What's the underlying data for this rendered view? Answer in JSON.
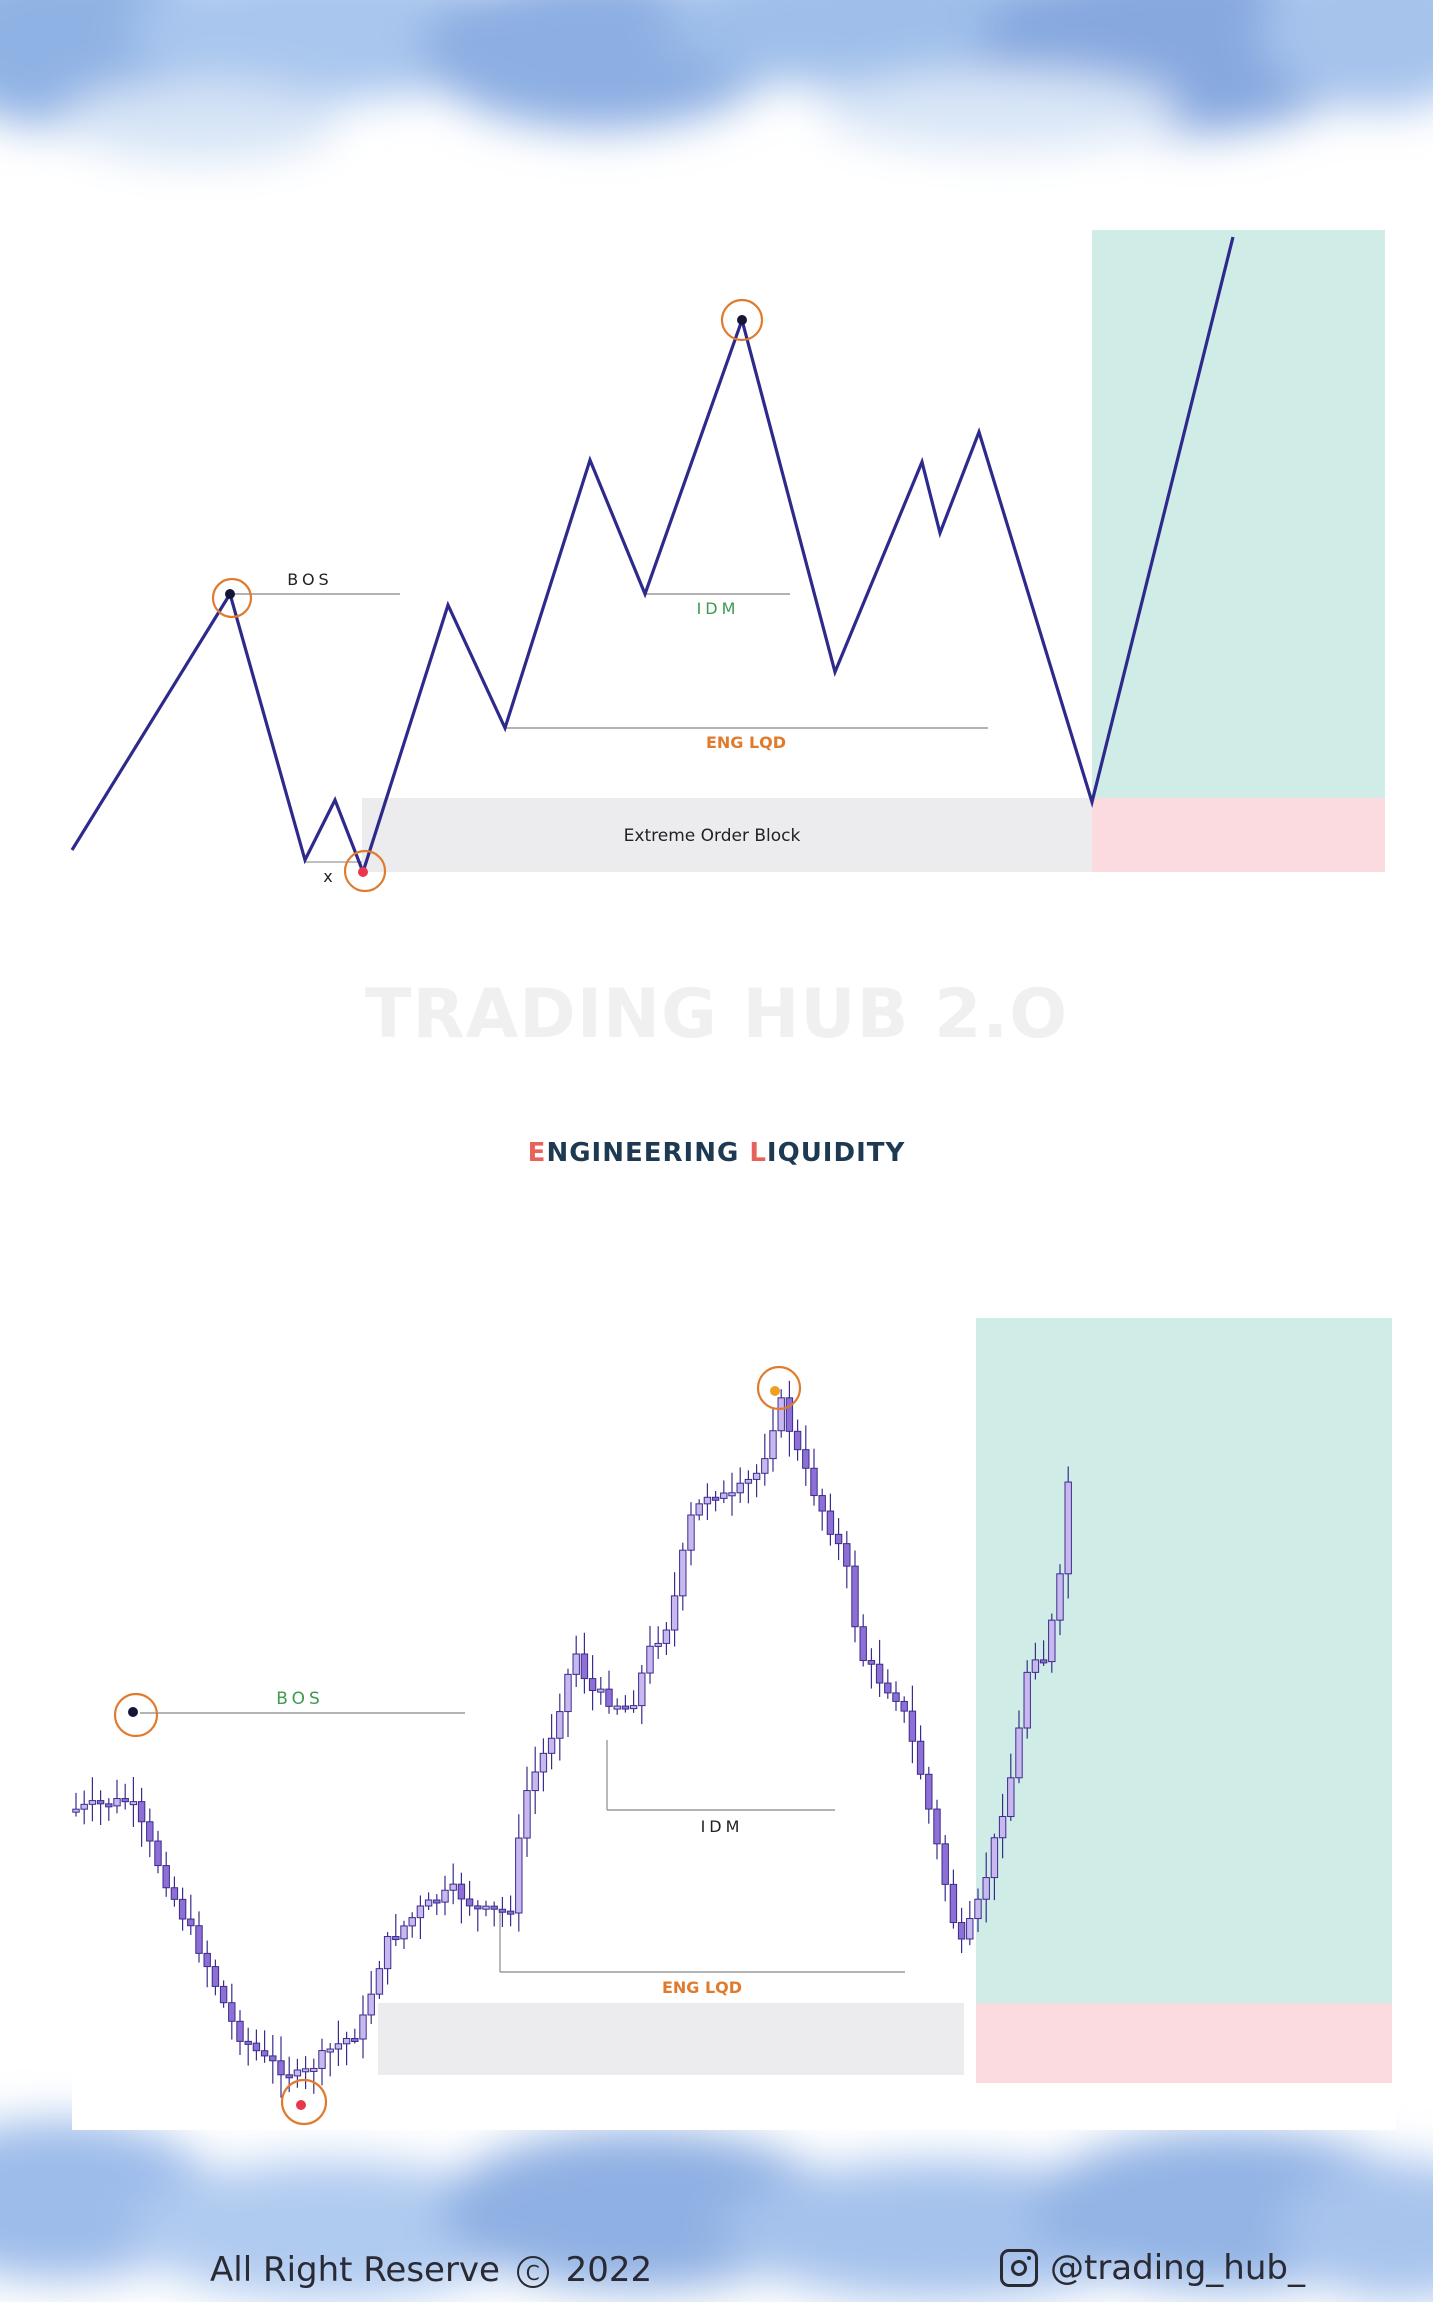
{
  "colors": {
    "sky": "#9ebfe8",
    "line": "#2d2a8c",
    "circle": "#e07b2e",
    "target_zone": "#cfece6",
    "stop_zone": "#fcdbe0",
    "order_block": "#ececee",
    "bos_green": "#3d9a50",
    "eng_orange": "#e07b2e",
    "candle_fill": "#c9b8f0",
    "candle_stroke": "#3a2c8c",
    "candle_bear": "#8e6fd6"
  },
  "top_diagram": {
    "labels": {
      "bos": "BOS",
      "idm": "IDM",
      "eng_lqd": "ENG LQD",
      "extreme_order_block": "Extreme Order Block",
      "x_mark": "x"
    }
  },
  "watermark": "TRADING HUB 2.O",
  "subtitle": {
    "first_initial": "E",
    "first_rest": "NGINEERING ",
    "second_initial": "L",
    "second_rest": "IQUIDITY"
  },
  "bottom_diagram": {
    "labels": {
      "bos": "BOS",
      "idm": "IDM",
      "eng_lqd": "ENG LQD"
    }
  },
  "footer": {
    "left_text": "All Right Reserve",
    "copyright_symbol": "C",
    "year": "2022",
    "handle": "@trading_hub_"
  },
  "icons": {
    "copyright": "copyright-icon",
    "social": "instagram-icon"
  }
}
